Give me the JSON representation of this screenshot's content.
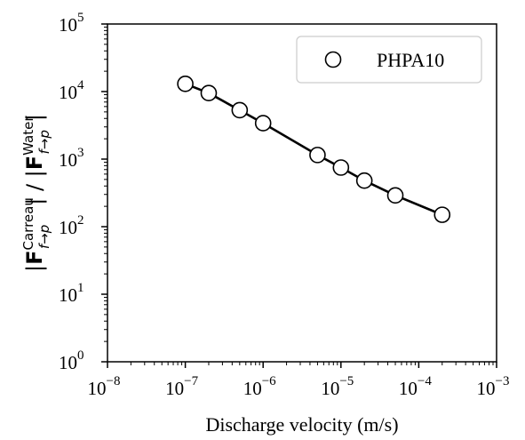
{
  "chart_data": {
    "type": "line",
    "x_scale": "log",
    "y_scale": "log",
    "xlim": [
      1e-08,
      0.001
    ],
    "ylim": [
      1,
      100000
    ],
    "xlabel": "Discharge velocity (m/s)",
    "ylabel": {
      "numerator_symbol": "F",
      "numerator_sup": "Carreau",
      "numerator_sub": "f→p",
      "divider": "/",
      "denominator_symbol": "F",
      "denominator_sup": "Water",
      "denominator_sub": "f→p"
    },
    "x_ticks": [
      {
        "base": "10",
        "exp": "−8",
        "value": 1e-08
      },
      {
        "base": "10",
        "exp": "−7",
        "value": 1e-07
      },
      {
        "base": "10",
        "exp": "−6",
        "value": 1e-06
      },
      {
        "base": "10",
        "exp": "−5",
        "value": 1e-05
      },
      {
        "base": "10",
        "exp": "−4",
        "value": 0.0001
      },
      {
        "base": "10",
        "exp": "−3",
        "value": 0.001
      }
    ],
    "y_ticks": [
      {
        "base": "10",
        "exp": "0",
        "value": 1
      },
      {
        "base": "10",
        "exp": "1",
        "value": 10
      },
      {
        "base": "10",
        "exp": "2",
        "value": 100
      },
      {
        "base": "10",
        "exp": "3",
        "value": 1000
      },
      {
        "base": "10",
        "exp": "4",
        "value": 10000
      },
      {
        "base": "10",
        "exp": "5",
        "value": 100000
      }
    ],
    "series": [
      {
        "name": "PHPA10",
        "marker": "open-circle",
        "line": true,
        "color": "#000000",
        "x": [
          1e-07,
          2e-07,
          5e-07,
          1e-06,
          5e-06,
          1e-05,
          2e-05,
          5e-05,
          0.0002
        ],
        "y": [
          13000,
          9500,
          5300,
          3400,
          1150,
          750,
          480,
          290,
          150
        ]
      }
    ],
    "legend": {
      "placement": "top-right"
    },
    "grid": false
  }
}
